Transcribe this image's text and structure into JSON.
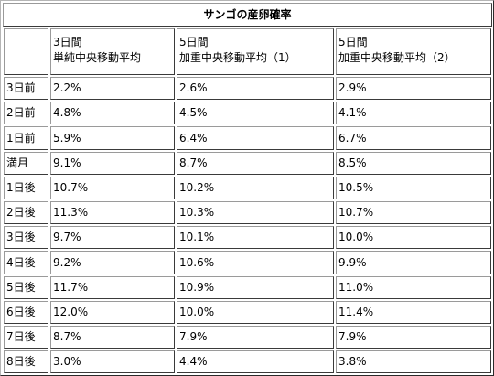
{
  "table": {
    "title": "サンゴの産卵確率",
    "header": [
      [
        "",
        ""
      ],
      [
        "3日間",
        "単純中央移動平均"
      ],
      [
        "5日間",
        "加重中央移動平均（1）"
      ],
      [
        "5日間",
        "加重中央移動平均（2）"
      ]
    ],
    "rows": [
      {
        "label": "3日前",
        "values": [
          "2.2%",
          "2.6%",
          "2.9%"
        ]
      },
      {
        "label": "2日前",
        "values": [
          "4.8%",
          "4.5%",
          "4.1%"
        ]
      },
      {
        "label": "1日前",
        "values": [
          "5.9%",
          "6.4%",
          "6.7%"
        ]
      },
      {
        "label": "満月",
        "values": [
          "9.1%",
          "8.7%",
          "8.5%"
        ]
      },
      {
        "label": "1日後",
        "values": [
          "10.7%",
          "10.2%",
          "10.5%"
        ]
      },
      {
        "label": "2日後",
        "values": [
          "11.3%",
          "10.3%",
          "10.7%"
        ]
      },
      {
        "label": "3日後",
        "values": [
          "9.7%",
          "10.1%",
          "10.0%"
        ]
      },
      {
        "label": "4日後",
        "values": [
          "9.2%",
          "10.6%",
          "9.9%"
        ]
      },
      {
        "label": "5日後",
        "values": [
          "11.7%",
          "10.9%",
          "11.0%"
        ]
      },
      {
        "label": "6日後",
        "values": [
          "12.0%",
          "10.0%",
          "11.4%"
        ]
      },
      {
        "label": "7日後",
        "values": [
          "8.7%",
          "7.9%",
          "7.9%"
        ]
      },
      {
        "label": "8日後",
        "values": [
          "3.0%",
          "4.4%",
          "3.8%"
        ]
      }
    ]
  }
}
